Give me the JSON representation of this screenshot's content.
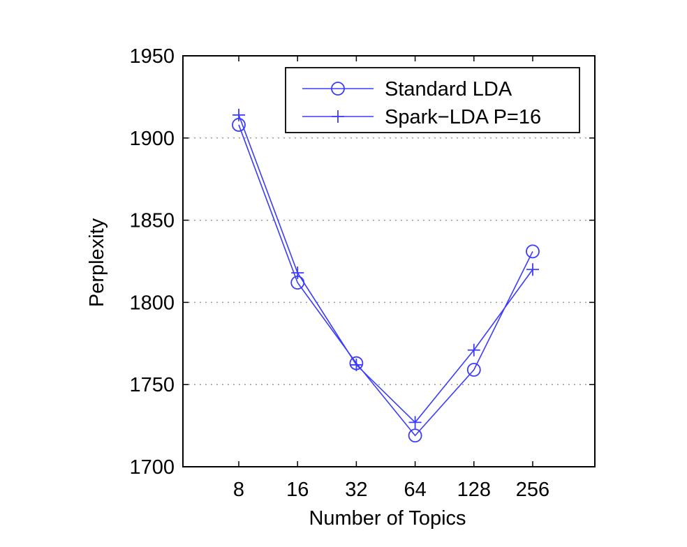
{
  "chart_data": {
    "type": "line",
    "title": "",
    "xlabel": "Number of Topics",
    "ylabel": "Perplexity",
    "categories": [
      "8",
      "16",
      "32",
      "64",
      "128",
      "256"
    ],
    "ylim": [
      1700,
      1950
    ],
    "yticks": [
      1700,
      1750,
      1800,
      1850,
      1900,
      1950
    ],
    "grid": "horizontal-dotted",
    "legend_position": "top-right",
    "series": [
      {
        "name": "Standard LDA",
        "marker": "circle",
        "color": "#3b3bff",
        "values": [
          1908,
          1812,
          1763,
          1719,
          1759,
          1831
        ]
      },
      {
        "name": "Spark−LDA P=16",
        "marker": "plus",
        "color": "#3b3bff",
        "values": [
          1914,
          1818,
          1762,
          1727,
          1771,
          1820
        ]
      }
    ]
  }
}
